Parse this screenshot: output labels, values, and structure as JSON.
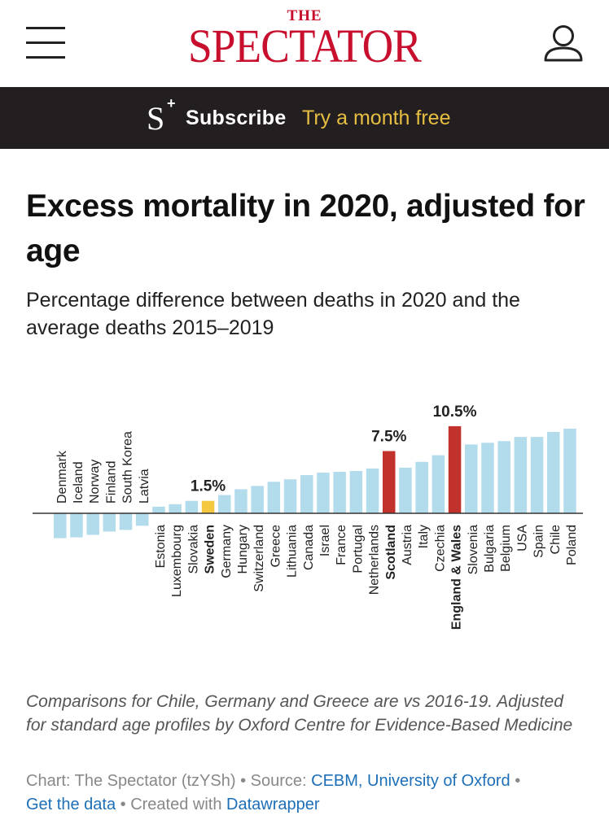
{
  "header": {
    "logo_small": "THE",
    "logo_main": "SPECTATOR"
  },
  "subscribe_bar": {
    "logo_letter": "S",
    "logo_plus": "+",
    "label": "Subscribe",
    "cta": "Try a month free"
  },
  "colors": {
    "brand": "#c8102e",
    "bar": "#b2dbeb",
    "highlight_red": "#c0322b",
    "highlight_yellow": "#f5c842",
    "cta": "#e6bf42",
    "link": "#1d6fb8"
  },
  "chart_data": {
    "type": "bar",
    "title": "Excess mortality in 2020, adjusted for age",
    "subtitle": "Percentage difference between deaths in 2020 and the average deaths 2015–2019",
    "categories": [
      "Denmark",
      "Iceland",
      "Norway",
      "Finland",
      "South Korea",
      "Latvia",
      "Estonia",
      "Luxembourg",
      "Slovakia",
      "Sweden",
      "Germany",
      "Hungary",
      "Switzerland",
      "Greece",
      "Lithuania",
      "Canada",
      "Israel",
      "France",
      "Portugal",
      "Netherlands",
      "Scotland",
      "Austria",
      "Italy",
      "Czechia",
      "England & Wales",
      "Slovenia",
      "Bulgaria",
      "Belgium",
      "USA",
      "Spain",
      "Chile",
      "Poland"
    ],
    "values": [
      -3.0,
      -2.9,
      -2.6,
      -2.2,
      -2.0,
      -1.5,
      0.8,
      1.1,
      1.5,
      1.5,
      2.2,
      2.9,
      3.3,
      3.8,
      4.1,
      4.6,
      4.9,
      5.0,
      5.1,
      5.4,
      7.5,
      5.5,
      6.2,
      7.0,
      10.5,
      8.3,
      8.5,
      8.7,
      9.2,
      9.2,
      9.8,
      10.2
    ],
    "highlights": {
      "Sweden": {
        "color": "yellow",
        "label": "1.5%"
      },
      "Scotland": {
        "color": "red",
        "label": "7.5%"
      },
      "England & Wales": {
        "color": "red",
        "label": "10.5%"
      }
    },
    "bold_labels": [
      "Sweden",
      "Scotland",
      "England & Wales"
    ],
    "ylim": [
      -3.0,
      10.5
    ],
    "xlabel": "",
    "ylabel": "",
    "grid": false,
    "legend": "none"
  },
  "notes": "Comparisons for Chile, Germany and Greece are vs 2016-19. Adjusted for standard age profiles by Oxford Centre for Evidence-Based Medicine",
  "footer": {
    "chart_credit": "Chart: The Spectator (tzYSh)",
    "sep": " • ",
    "source_label": "Source: ",
    "source_link": "CEBM, University of Oxford",
    "get_data": "Get the data",
    "created_with": "Created with ",
    "tool_link": "Datawrapper"
  }
}
